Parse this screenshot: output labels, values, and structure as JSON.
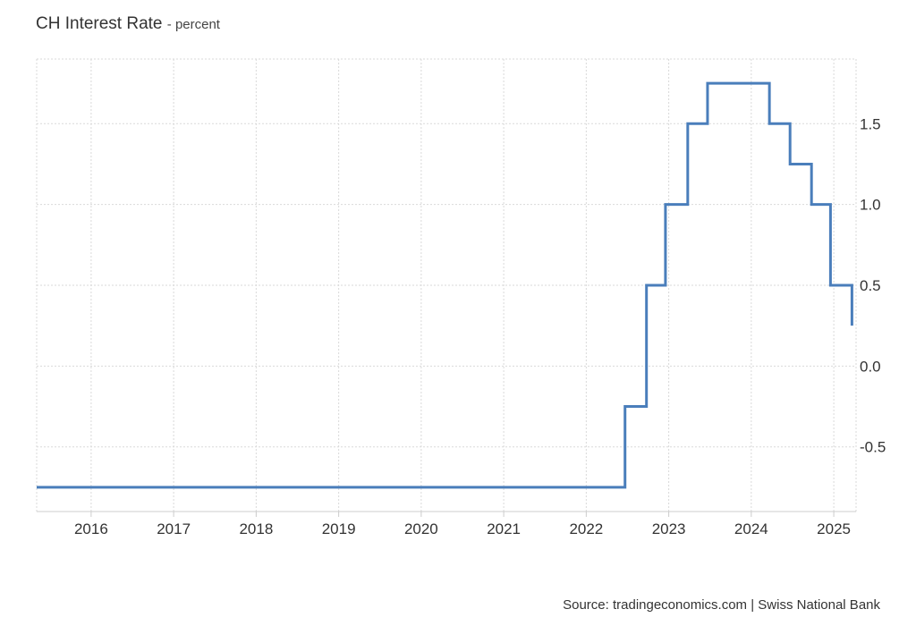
{
  "header": {
    "title": "CH Interest Rate",
    "unit": "- percent"
  },
  "footer": {
    "source": "Source: tradingeconomics.com | Swiss National Bank"
  },
  "colors": {
    "line": "#4a7ebb",
    "grid": "#d9d9d9",
    "axis": "#cccccc"
  },
  "chart_data": {
    "type": "line",
    "step": true,
    "title": "CH Interest Rate",
    "ylabel": "percent",
    "xlim": [
      2015.34,
      2025.27
    ],
    "ylim": [
      -0.9,
      1.9
    ],
    "x_ticks": [
      2016,
      2017,
      2018,
      2019,
      2020,
      2021,
      2022,
      2023,
      2024,
      2025
    ],
    "x_tick_labels": [
      "2016",
      "2017",
      "2018",
      "2019",
      "2020",
      "2021",
      "2022",
      "2023",
      "2024",
      "2025"
    ],
    "y_ticks": [
      -0.5,
      0.0,
      0.5,
      1.0,
      1.5
    ],
    "y_tick_labels": [
      "-0.5",
      "0.0",
      "0.5",
      "1.0",
      "1.5"
    ],
    "grid": true,
    "series": [
      {
        "x": [
          2015.34,
          2022.47,
          2022.73,
          2022.96,
          2023.23,
          2023.47,
          2024.22,
          2024.47,
          2024.73,
          2024.96,
          2025.22
        ],
        "values": [
          -0.75,
          -0.25,
          0.5,
          1.0,
          1.5,
          1.75,
          1.5,
          1.25,
          1.0,
          0.5,
          0.25
        ]
      }
    ]
  }
}
